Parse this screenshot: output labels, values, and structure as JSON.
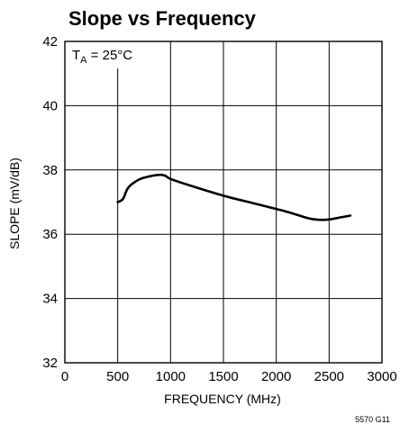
{
  "chart_data": {
    "type": "line",
    "title": "Slope vs Frequency",
    "xlabel": "FREQUENCY (MHz)",
    "ylabel": "SLOPE (mV/dB)",
    "xlim": [
      0,
      3000
    ],
    "ylim": [
      32,
      42
    ],
    "xticks": [
      0,
      500,
      1000,
      1500,
      2000,
      2500,
      3000
    ],
    "yticks": [
      32,
      34,
      36,
      38,
      40,
      42
    ],
    "grid": true,
    "annotation": {
      "text_main": "T",
      "text_sub": "A",
      "text_rest": " = 25°C"
    },
    "series": [
      {
        "x": [
          500,
          550,
          600,
          700,
          800,
          900,
          950,
          1000,
          1200,
          1500,
          1800,
          2100,
          2300,
          2400,
          2500,
          2600,
          2700
        ],
        "y": [
          37.0,
          37.1,
          37.45,
          37.7,
          37.8,
          37.85,
          37.82,
          37.72,
          37.5,
          37.2,
          36.95,
          36.7,
          36.5,
          36.45,
          36.46,
          36.52,
          36.58
        ]
      }
    ],
    "figure_code": "5570 G11"
  },
  "colors": {
    "line": "#000000",
    "grid": "#000000",
    "background": "#ffffff"
  }
}
